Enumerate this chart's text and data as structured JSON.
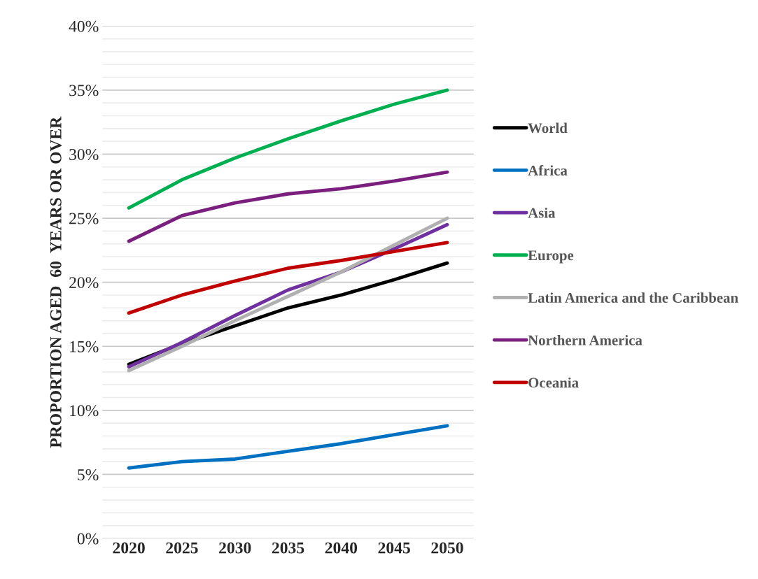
{
  "chart_data": {
    "type": "line",
    "ylabel": "PROPORTION AGED  60  YEARS OR OVER",
    "categories": [
      "2020",
      "2025",
      "2030",
      "2035",
      "2040",
      "2045",
      "2050"
    ],
    "ylim": [
      0,
      40
    ],
    "yticks": [
      {
        "value": 0,
        "label": "0%"
      },
      {
        "value": 1,
        "label": null
      },
      {
        "value": 2,
        "label": null
      },
      {
        "value": 3,
        "label": null
      },
      {
        "value": 4,
        "label": null
      },
      {
        "value": 5,
        "label": "5%"
      },
      {
        "value": 6,
        "label": null
      },
      {
        "value": 7,
        "label": null
      },
      {
        "value": 8,
        "label": null
      },
      {
        "value": 9,
        "label": null
      },
      {
        "value": 10,
        "label": "10%"
      },
      {
        "value": 11,
        "label": null
      },
      {
        "value": 12,
        "label": null
      },
      {
        "value": 13,
        "label": null
      },
      {
        "value": 14,
        "label": null
      },
      {
        "value": 15,
        "label": "15%"
      },
      {
        "value": 16,
        "label": null
      },
      {
        "value": 17,
        "label": null
      },
      {
        "value": 18,
        "label": null
      },
      {
        "value": 19,
        "label": null
      },
      {
        "value": 20,
        "label": "20%"
      },
      {
        "value": 21,
        "label": null
      },
      {
        "value": 22,
        "label": null
      },
      {
        "value": 23,
        "label": null
      },
      {
        "value": 24,
        "label": null
      },
      {
        "value": 25,
        "label": "25%"
      },
      {
        "value": 26,
        "label": null
      },
      {
        "value": 27,
        "label": null
      },
      {
        "value": 28,
        "label": null
      },
      {
        "value": 29,
        "label": null
      },
      {
        "value": 30,
        "label": "30%"
      },
      {
        "value": 31,
        "label": null
      },
      {
        "value": 32,
        "label": null
      },
      {
        "value": 33,
        "label": null
      },
      {
        "value": 34,
        "label": null
      },
      {
        "value": 35,
        "label": "35%"
      },
      {
        "value": 36,
        "label": null
      },
      {
        "value": 37,
        "label": null
      },
      {
        "value": 38,
        "label": null
      },
      {
        "value": 39,
        "label": null
      },
      {
        "value": 40,
        "label": "40%"
      }
    ],
    "grid": "y",
    "legend": "right",
    "line_style": "solid",
    "series": [
      {
        "name": "World",
        "color": "#000000",
        "values": [
          13.6,
          15.2,
          16.6,
          18.0,
          19.0,
          20.2,
          21.5
        ]
      },
      {
        "name": "Africa",
        "color": "#0070c0",
        "values": [
          5.5,
          6.0,
          6.2,
          6.8,
          7.4,
          8.1,
          8.8
        ]
      },
      {
        "name": "Asia",
        "color": "#7030a0",
        "values": [
          13.4,
          15.3,
          17.4,
          19.4,
          20.8,
          22.6,
          24.5
        ]
      },
      {
        "name": "Europe",
        "color": "#00b050",
        "values": [
          25.8,
          28.0,
          29.7,
          31.2,
          32.6,
          33.9,
          35.0
        ]
      },
      {
        "name": "Latin America and the Caribbean",
        "color": "#b0b0b0",
        "values": [
          13.1,
          15.0,
          17.0,
          18.9,
          20.8,
          22.9,
          25.0
        ]
      },
      {
        "name": "Northern America",
        "color": "#7b1f7f",
        "values": [
          23.2,
          25.2,
          26.2,
          26.9,
          27.3,
          27.9,
          28.6
        ]
      },
      {
        "name": "Oceania",
        "color": "#c00000",
        "values": [
          17.6,
          19.0,
          20.1,
          21.1,
          21.7,
          22.4,
          23.1
        ]
      }
    ]
  }
}
